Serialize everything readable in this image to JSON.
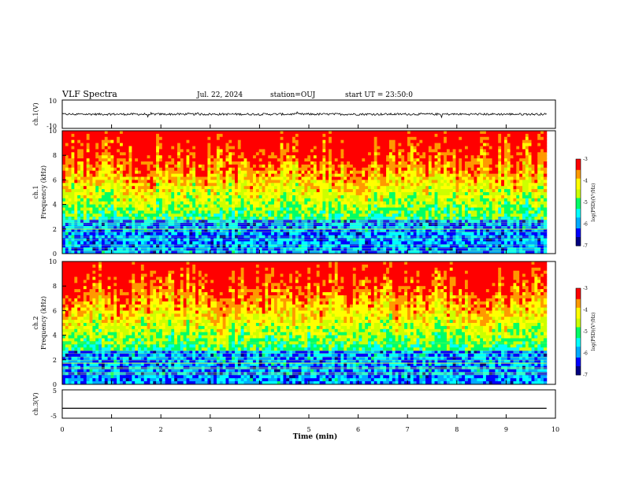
{
  "header": {
    "title": "VLF Spectra",
    "date": "Jul. 22, 2024",
    "station": "station=OUJ",
    "start_time": "start UT = 23:50:0"
  },
  "colors": {
    "axis": "#000000",
    "colormap": [
      "#000080",
      "#0000ff",
      "#00aaff",
      "#00ffff",
      "#00ff66",
      "#ccff00",
      "#ffff00",
      "#ff9900",
      "#ff0000",
      "#ffffff"
    ]
  },
  "chart_data": [
    {
      "name": "ch1_waveform",
      "type": "line",
      "ylabel": "ch.1(V)",
      "ylim": [
        -10,
        10
      ],
      "yticks": [
        "10",
        "-10"
      ],
      "xlim": [
        0,
        10
      ],
      "baseline_value": 0,
      "noise_amplitude": 1.5
    },
    {
      "name": "ch1_spectrogram",
      "type": "heatmap",
      "ylabel": "ch.1\nFrequency (kHz)",
      "ylabel_line1": "ch.1",
      "ylabel_line2": "Frequency (kHz)",
      "ylim": [
        0,
        10
      ],
      "yticks": [
        "0",
        "2",
        "4",
        "6",
        "8",
        "10"
      ],
      "xlim": [
        0,
        10
      ],
      "colorbar": {
        "label": "log(PSD)(V²/Hz)",
        "range": [
          -7,
          -3
        ],
        "ticks": [
          "-3",
          "-4",
          "-5",
          "-6",
          "-7"
        ]
      }
    },
    {
      "name": "ch2_spectrogram",
      "type": "heatmap",
      "ylabel_line1": "ch.2",
      "ylabel_line2": "Frequency (kHz)",
      "ylim": [
        0,
        10
      ],
      "yticks": [
        "0",
        "2",
        "4",
        "6",
        "8",
        "10"
      ],
      "xlim": [
        0,
        10
      ],
      "colorbar": {
        "label": "log(PSD)(V²/Hz)",
        "range": [
          -7,
          -3
        ],
        "ticks": [
          "-3",
          "-4",
          "-5",
          "-6",
          "-7"
        ]
      }
    },
    {
      "name": "ch3_waveform",
      "type": "line",
      "ylabel": "ch.3(V)",
      "ylim": [
        -5,
        5
      ],
      "yticks": [
        "5",
        "-5"
      ],
      "xlim": [
        0,
        10
      ],
      "baseline_value": -1.5,
      "xlabel": "Time (min)",
      "xticks": [
        "0",
        "1",
        "2",
        "3",
        "4",
        "5",
        "6",
        "7",
        "8",
        "9",
        "10"
      ]
    }
  ]
}
